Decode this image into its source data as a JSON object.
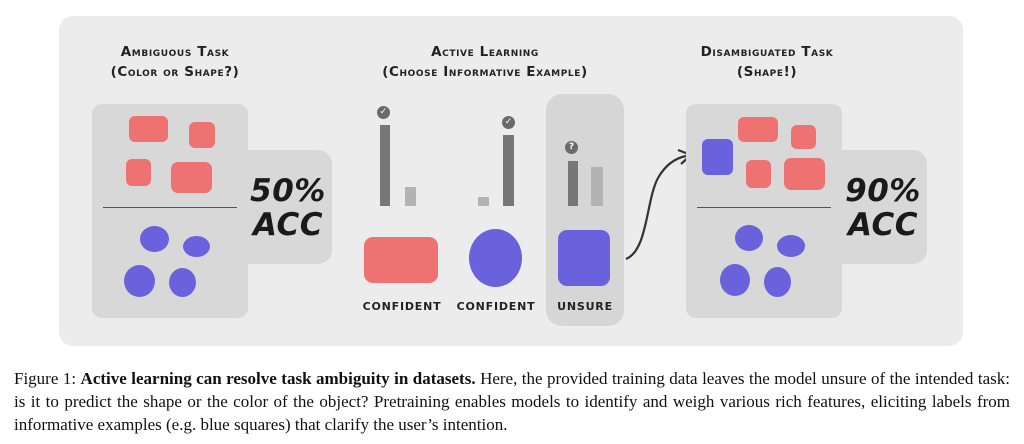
{
  "columns": {
    "ambiguous": {
      "title_line1": "Ambiguous Task",
      "title_line2": "(Color or Shape?)",
      "accuracy": "50%",
      "accuracy_unit": "ACC"
    },
    "active": {
      "title_line1": "Active Learning",
      "title_line2": "(Choose Informative Example)"
    },
    "disambiguated": {
      "title_line1": "Disambiguated Task",
      "title_line2": "(Shape!)",
      "accuracy": "90%",
      "accuracy_unit": "ACC"
    }
  },
  "candidates": [
    {
      "label": "CONFIDENT",
      "badge": "✓",
      "shape": "red rectangle"
    },
    {
      "label": "CONFIDENT",
      "badge": "✓",
      "shape": "blue circle"
    },
    {
      "label": "UNSURE",
      "badge": "?",
      "shape": "blue square"
    }
  ],
  "colors": {
    "red": "#ee7272",
    "blue": "#6a62dc",
    "panel": "#ececec",
    "box": "#d8d8d8",
    "bar_dark": "#777777",
    "bar_light": "#b3b3b3"
  },
  "caption": {
    "prefix": "Figure 1: ",
    "bold": "Active learning can resolve task ambiguity in datasets.",
    "body": " Here, the provided training data leaves the model unsure of the intended task: is it to predict the shape or the color of the object? Pretraining enables models to identify and weigh various rich features, eliciting labels from informative examples (e.g. blue squares) that clarify the user’s intention."
  }
}
